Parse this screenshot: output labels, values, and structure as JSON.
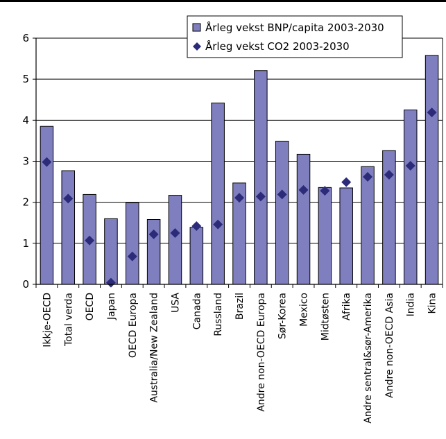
{
  "header": {
    "title_fragment": ""
  },
  "chart_data": {
    "type": "bar",
    "title": "",
    "xlabel": "",
    "ylabel": "",
    "ylim": [
      0,
      6
    ],
    "yticks": [
      0,
      1,
      2,
      3,
      4,
      5,
      6
    ],
    "grid": true,
    "legend_position": "top-right",
    "categories": [
      "Ikkje-OECD",
      "Total verda",
      "OECD",
      "Japan",
      "OECD Europa",
      "Australia/New Zealand",
      "USA",
      "Canada",
      "Russland",
      "Brazil",
      "Andre non-OECD Europa",
      "Sør-Korea",
      "Mexico",
      "Midtøsten",
      "Afrika",
      "Andre sentral&sør-Amerika",
      "Andre non-OECD Asia",
      "India",
      "Kina"
    ],
    "series": [
      {
        "name": "Årleg vekst BNP/capita 2003-2030",
        "kind": "bar",
        "color": "#7f7fbf",
        "values": [
          3.85,
          2.77,
          2.19,
          1.6,
          1.99,
          1.58,
          2.17,
          1.39,
          4.42,
          2.47,
          5.21,
          3.49,
          3.17,
          2.36,
          2.35,
          2.87,
          3.26,
          4.25,
          5.58
        ]
      },
      {
        "name": "Årleg vekst CO2 2003-2030",
        "kind": "marker",
        "color": "#2b2b7a",
        "values": [
          2.98,
          2.09,
          1.07,
          0.04,
          0.68,
          1.22,
          1.25,
          1.42,
          1.46,
          2.11,
          2.14,
          2.19,
          2.3,
          2.28,
          2.49,
          2.62,
          2.67,
          2.89,
          4.19
        ]
      }
    ]
  }
}
